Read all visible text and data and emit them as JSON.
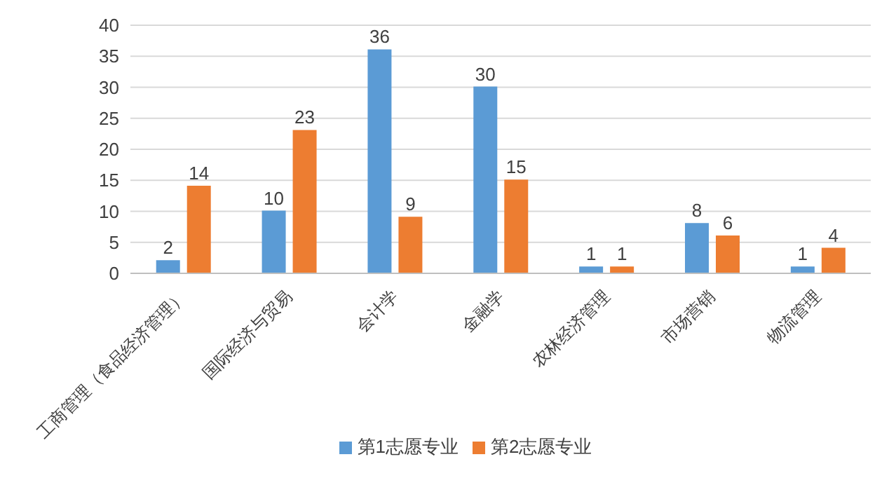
{
  "chart_data": {
    "type": "bar",
    "categories": [
      "工商管理（食品经济管理）",
      "国际经济与贸易",
      "会计学",
      "金融学",
      "农林经济管理",
      "市场营销",
      "物流管理"
    ],
    "series": [
      {
        "name": "第1志愿专业",
        "color": "#5b9bd5",
        "values": [
          2,
          10,
          36,
          30,
          1,
          8,
          1
        ]
      },
      {
        "name": "第2志愿专业",
        "color": "#ed7d31",
        "values": [
          14,
          23,
          9,
          15,
          1,
          6,
          4
        ]
      }
    ],
    "ylim": [
      0,
      40
    ],
    "yticks": [
      0,
      5,
      10,
      15,
      20,
      25,
      30,
      35,
      40
    ],
    "grid": "y",
    "legend": "bottom",
    "data_labels": true
  }
}
